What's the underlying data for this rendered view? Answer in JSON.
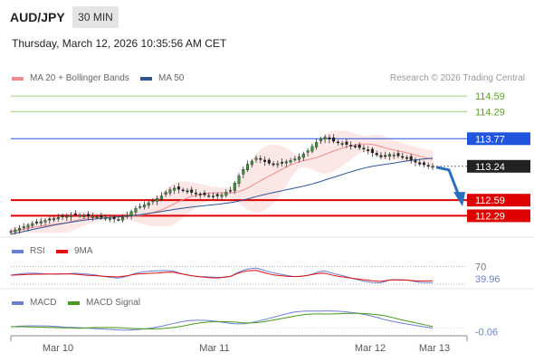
{
  "header": {
    "symbol": "AUD/JPY",
    "timeframe": "30 MIN",
    "datetime": "Thursday, March 12, 2026 10:35:56 AM CET"
  },
  "legend": {
    "main": [
      {
        "name": "MA 20 + Bollinger Bands",
        "color": "#f08a8a"
      },
      {
        "name": "MA 50",
        "color": "#2f5597"
      }
    ],
    "rsi": [
      {
        "name": "RSI",
        "color": "#6a7fd0"
      },
      {
        "name": "9MA",
        "color": "#dd1111"
      }
    ],
    "macd": [
      {
        "name": "MACD",
        "color": "#6a7fd0"
      },
      {
        "name": "MACD Signal",
        "color": "#4a9a1a"
      }
    ]
  },
  "credit": "Research © 2026 Trading Central",
  "chart_data": {
    "type": "candlestick",
    "price_range": [
      111.95,
      114.8
    ],
    "levels": [
      {
        "value": 114.59,
        "label": "114.59",
        "color": "#9bd07a",
        "style": "thin-green"
      },
      {
        "value": 114.29,
        "label": "114.29",
        "color": "#9bd07a",
        "style": "thin-green"
      },
      {
        "value": 113.77,
        "label": "113.77",
        "color": "#2255dd",
        "style": "resistance-blue"
      },
      {
        "value": 113.24,
        "label": "113.24",
        "color": "#222222",
        "style": "current-price"
      },
      {
        "value": 112.59,
        "label": "112.59",
        "color": "#dd0000",
        "style": "support-red"
      },
      {
        "value": 112.29,
        "label": "112.29",
        "color": "#dd0000",
        "style": "support-red"
      }
    ],
    "x_ticks": [
      "Mar 10",
      "Mar 11",
      "Mar 12",
      "Mar 13"
    ],
    "closes": [
      111.99,
      112.02,
      112.05,
      112.08,
      112.11,
      112.14,
      112.16,
      112.18,
      112.2,
      112.22,
      112.24,
      112.26,
      112.27,
      112.28,
      112.3,
      112.31,
      112.3,
      112.29,
      112.28,
      112.28,
      112.27,
      112.26,
      112.25,
      112.24,
      112.23,
      112.22,
      112.26,
      112.3,
      112.37,
      112.43,
      112.47,
      112.5,
      112.54,
      112.58,
      112.62,
      112.67,
      112.74,
      112.79,
      112.82,
      112.8,
      112.78,
      112.76,
      112.74,
      112.72,
      112.7,
      112.69,
      112.68,
      112.67,
      112.67,
      112.69,
      112.74,
      112.78,
      112.92,
      113.06,
      113.18,
      113.28,
      113.34,
      113.4,
      113.37,
      113.33,
      113.3,
      113.28,
      113.29,
      113.31,
      113.33,
      113.35,
      113.38,
      113.42,
      113.48,
      113.54,
      113.62,
      113.7,
      113.77,
      113.8,
      113.76,
      113.72,
      113.69,
      113.68,
      113.66,
      113.64,
      113.62,
      113.6,
      113.57,
      113.54,
      113.5,
      113.46,
      113.42,
      113.44,
      113.47,
      113.46,
      113.44,
      113.42,
      113.4,
      113.36,
      113.32,
      113.28,
      113.27,
      113.25,
      113.24
    ],
    "rsi": {
      "levels": [
        70,
        30
      ],
      "last_value": 39.96,
      "last_label": "39.96",
      "level_label": "70"
    },
    "macd": {
      "last_value": -0.06,
      "last_label": "-0.06"
    },
    "forecast_arrow": {
      "from": 113.24,
      "to": 112.59,
      "color": "#2a6fbf"
    }
  }
}
